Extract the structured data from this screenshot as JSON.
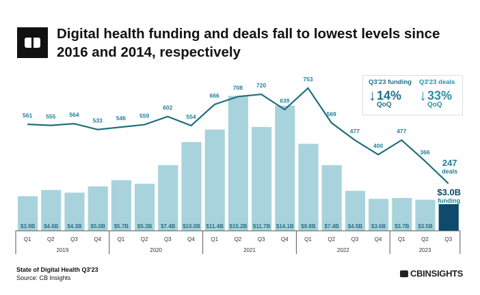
{
  "title": "Digital health funding and deals fall to lowest levels since 2016 and 2014, respectively",
  "callout": {
    "funding_label": "Q3'23 funding",
    "funding_change": "14%",
    "deals_label": "Q3'23 deals",
    "deals_change": "33%",
    "qoq": "QoQ"
  },
  "footer": {
    "report": "State of Digital Health Q3'23",
    "source": "Source: CB Insights",
    "brand": "CBINSIGHTS"
  },
  "colors": {
    "bar": "#a8d3dc",
    "bar_highlight": "#0d4a6b",
    "line": "#1f6f7b",
    "label": "#1f7f9b"
  },
  "chart_data": {
    "type": "bar+line",
    "quarters": [
      "Q1",
      "Q2",
      "Q3",
      "Q4",
      "Q1",
      "Q2",
      "Q3",
      "Q4",
      "Q1",
      "Q2",
      "Q3",
      "Q4",
      "Q1",
      "Q2",
      "Q3",
      "Q4",
      "Q1",
      "Q2",
      "Q3"
    ],
    "years": [
      {
        "label": "2019",
        "count": 4
      },
      {
        "label": "2020",
        "count": 4
      },
      {
        "label": "2021",
        "count": 4
      },
      {
        "label": "2022",
        "count": 4
      },
      {
        "label": "2023",
        "count": 3
      }
    ],
    "series": [
      {
        "name": "Funding ($B)",
        "type": "bar",
        "values": [
          3.9,
          4.6,
          4.3,
          5.0,
          5.7,
          5.3,
          7.4,
          10.0,
          11.4,
          15.2,
          11.7,
          14.1,
          9.8,
          7.4,
          4.5,
          3.6,
          3.7,
          3.5,
          3.0
        ],
        "labels": [
          "$3.9B",
          "$4.6B",
          "$4.3B",
          "$5.0B",
          "$5.7B",
          "$5.3B",
          "$7.4B",
          "$10.0B",
          "$11.4B",
          "$15.2B",
          "$11.7B",
          "$14.1B",
          "$9.8B",
          "$7.4B",
          "$4.5B",
          "$3.6B",
          "$3.7B",
          "$3.5B",
          "$3.0B"
        ]
      },
      {
        "name": "Deals",
        "type": "line",
        "values": [
          561,
          555,
          564,
          533,
          546,
          559,
          602,
          554,
          666,
          708,
          720,
          639,
          753,
          569,
          477,
          400,
          477,
          366,
          247
        ]
      }
    ],
    "last_annotations": {
      "deals_value": "247",
      "deals_word": "deals",
      "funding_value": "$3.0B",
      "funding_word": "funding"
    }
  }
}
